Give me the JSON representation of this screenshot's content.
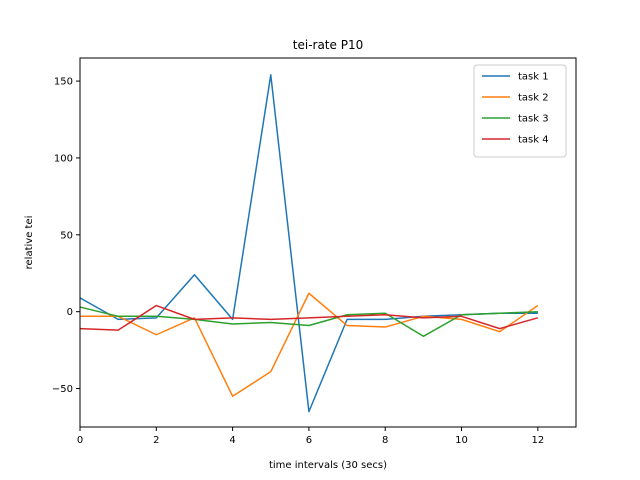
{
  "chart_data": {
    "type": "line",
    "title": "tei-rate P10",
    "xlabel": "time intervals (30 secs)",
    "ylabel": "relative tei",
    "xlim": [
      0,
      13
    ],
    "ylim": [
      -75,
      165
    ],
    "xticks": [
      0,
      2,
      4,
      6,
      8,
      10,
      12
    ],
    "yticks": [
      -50,
      0,
      50,
      100,
      150
    ],
    "legend_position": "top-right",
    "grid": false,
    "x": [
      0,
      1,
      2,
      3,
      4,
      5,
      6,
      7,
      8,
      9,
      10,
      11,
      12
    ],
    "series": [
      {
        "name": "task 1",
        "color": "#1f77b4",
        "values": [
          9,
          -5,
          -4,
          24,
          -5,
          154,
          -65,
          -5,
          -5,
          -3,
          -2,
          -1,
          -1
        ]
      },
      {
        "name": "task 2",
        "color": "#ff7f0e",
        "values": [
          -3,
          -3,
          -15,
          -4,
          -55,
          -39,
          12,
          -9,
          -10,
          -3,
          -5,
          -13,
          4
        ]
      },
      {
        "name": "task 3",
        "color": "#2ca02c",
        "values": [
          3,
          -3,
          -3,
          -5,
          -8,
          -7,
          -9,
          -2,
          -1,
          -16,
          -2,
          -1,
          0
        ]
      },
      {
        "name": "task 4",
        "color": "#d62728",
        "values": [
          -11,
          -12,
          4,
          -5,
          -4,
          -5,
          -4,
          -3,
          -2,
          -4,
          -3,
          -11,
          -4
        ]
      }
    ]
  }
}
